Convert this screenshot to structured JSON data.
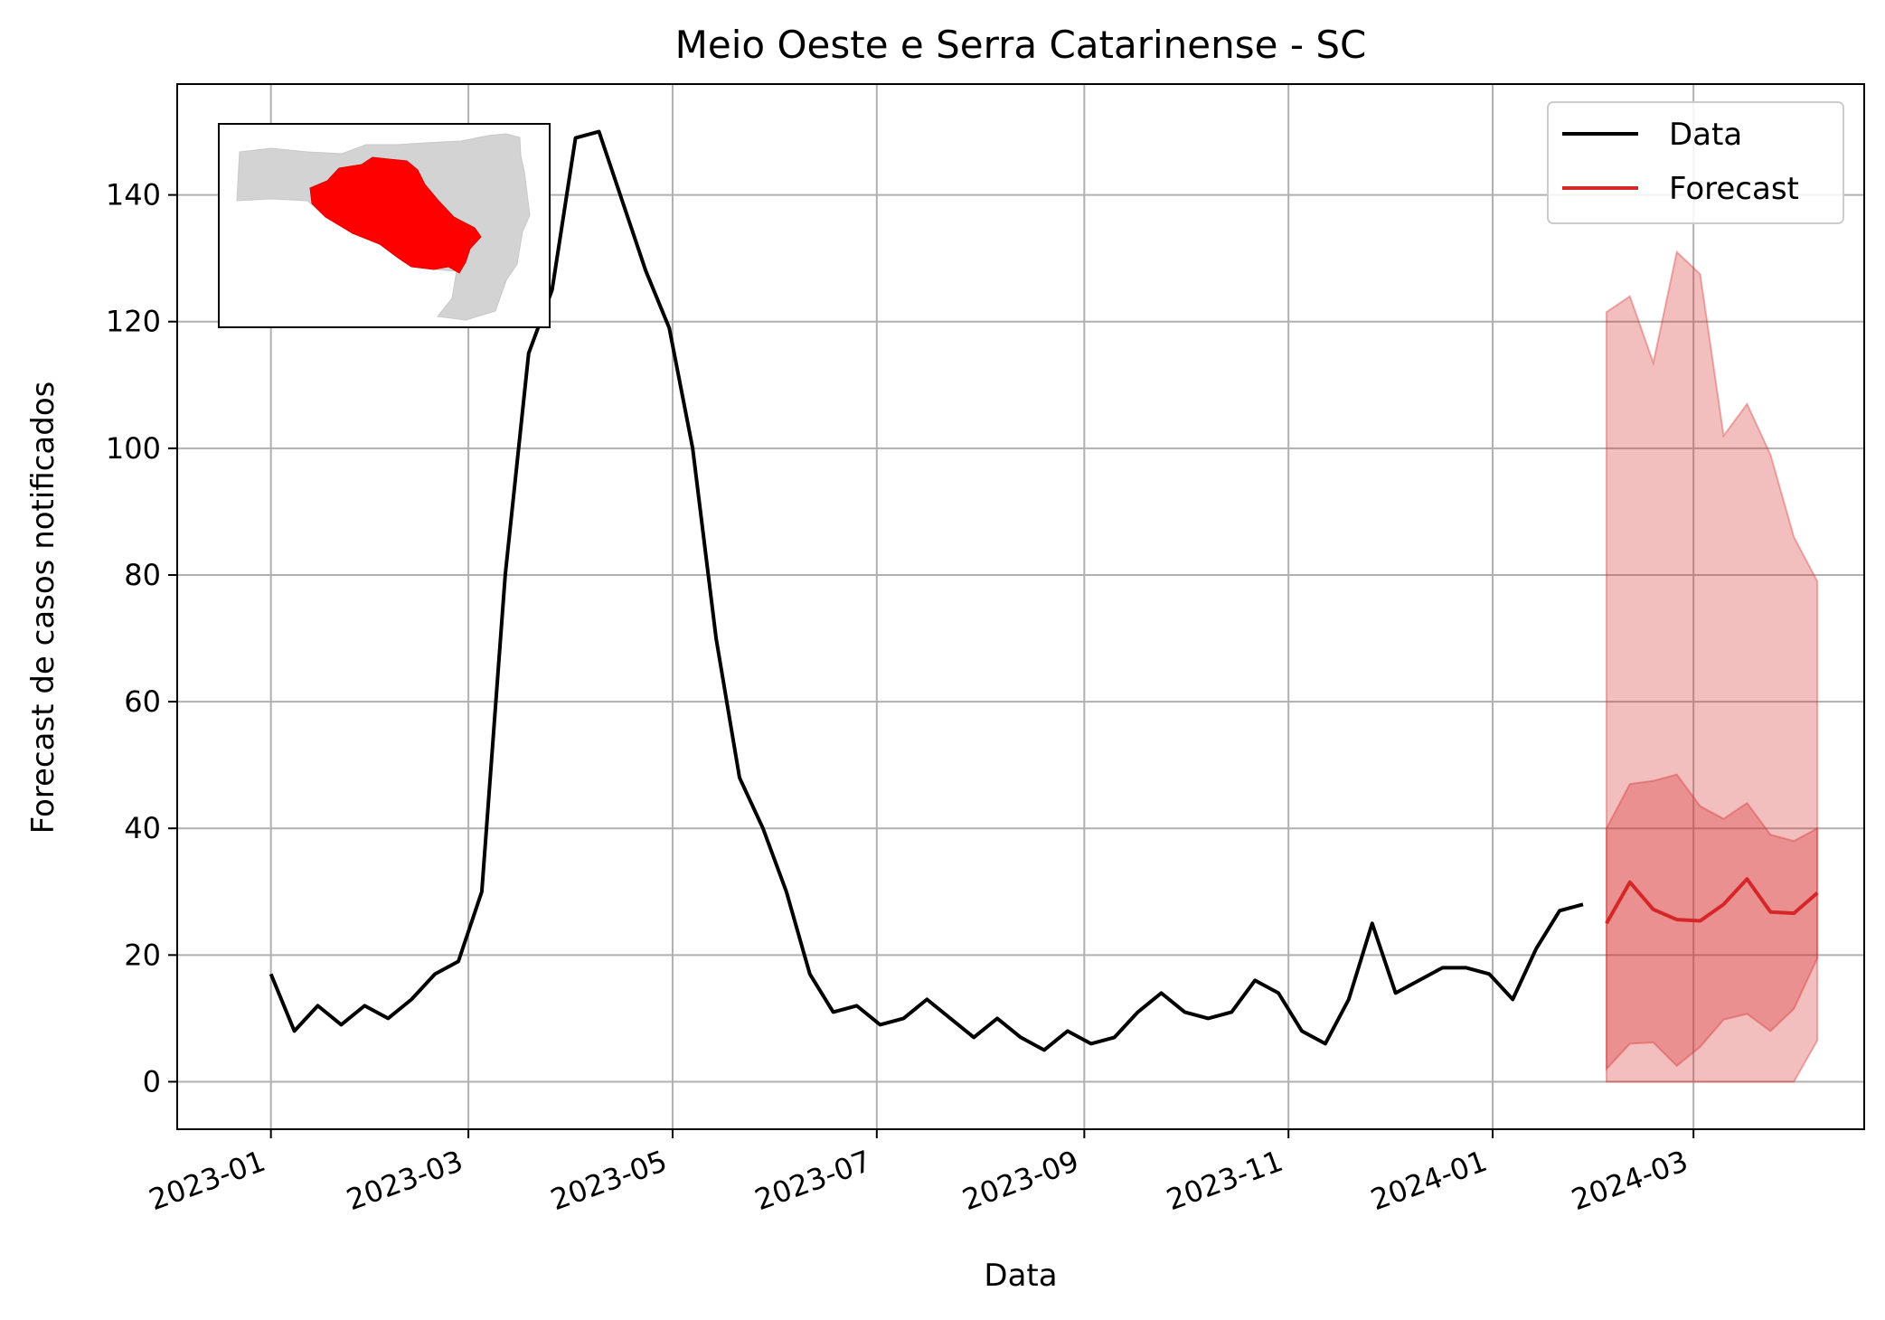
{
  "chart_data": {
    "type": "line",
    "title": "Meio Oeste e Serra Catarinense - SC",
    "xlabel": "Data",
    "ylabel": "Forecast de casos notificados",
    "grid": true,
    "legend_position": "top-right",
    "xlim": [
      "2022-12-04",
      "2024-04-21"
    ],
    "ylim": [
      -7.5,
      157.5
    ],
    "x_ticks": [
      "2023-01-01",
      "2023-03-01",
      "2023-05-01",
      "2023-07-01",
      "2023-09-01",
      "2023-11-01",
      "2024-01-01",
      "2024-03-01"
    ],
    "x_tick_labels": [
      "2023-01",
      "2023-03",
      "2023-05",
      "2023-07",
      "2023-09",
      "2023-11",
      "2024-01",
      "2024-03"
    ],
    "y_ticks": [
      0,
      20,
      40,
      60,
      80,
      100,
      120,
      140
    ],
    "colors": {
      "data": "#000000",
      "forecast": "#d62728",
      "interval": "#d62728",
      "map_highlight": "#ff0000",
      "map_base": "#d3d3d3"
    },
    "inset": "map-of-santa-catarina-with-region-highlighted",
    "series": [
      {
        "name": "Data",
        "x": [
          "2023-01-01",
          "2023-01-08",
          "2023-01-15",
          "2023-01-22",
          "2023-01-29",
          "2023-02-05",
          "2023-02-12",
          "2023-02-19",
          "2023-02-26",
          "2023-03-05",
          "2023-03-12",
          "2023-03-19",
          "2023-03-26",
          "2023-04-02",
          "2023-04-09",
          "2023-04-16",
          "2023-04-23",
          "2023-04-30",
          "2023-05-07",
          "2023-05-14",
          "2023-05-21",
          "2023-05-28",
          "2023-06-04",
          "2023-06-11",
          "2023-06-18",
          "2023-06-25",
          "2023-07-02",
          "2023-07-09",
          "2023-07-16",
          "2023-07-23",
          "2023-07-30",
          "2023-08-06",
          "2023-08-13",
          "2023-08-20",
          "2023-08-27",
          "2023-09-03",
          "2023-09-10",
          "2023-09-17",
          "2023-09-24",
          "2023-10-01",
          "2023-10-08",
          "2023-10-15",
          "2023-10-22",
          "2023-10-29",
          "2023-11-05",
          "2023-11-12",
          "2023-11-19",
          "2023-11-26",
          "2023-12-03",
          "2023-12-10",
          "2023-12-17",
          "2023-12-24",
          "2023-12-31",
          "2024-01-07",
          "2024-01-14",
          "2024-01-21",
          "2024-01-28"
        ],
        "values": [
          17,
          8,
          12,
          9,
          12,
          10,
          13,
          17,
          19,
          30,
          80,
          115,
          125,
          149,
          150,
          139,
          128,
          119,
          100,
          70,
          48,
          40,
          30,
          17,
          11,
          12,
          9,
          10,
          13,
          10,
          7,
          10,
          7,
          5,
          8,
          6,
          7,
          11,
          14,
          11,
          10,
          11,
          16,
          14,
          8,
          6,
          13,
          25,
          14,
          16,
          18,
          18,
          17,
          13,
          21,
          27,
          28
        ]
      },
      {
        "name": "Forecast",
        "x": [
          "2024-02-04",
          "2024-02-11",
          "2024-02-18",
          "2024-02-25",
          "2024-03-03",
          "2024-03-10",
          "2024-03-17",
          "2024-03-24",
          "2024-03-31",
          "2024-04-07"
        ],
        "values": [
          25,
          31.5,
          27.2,
          25.6,
          25.4,
          28,
          32,
          26.8,
          26.6,
          29.8
        ],
        "lower_50": [
          2,
          6,
          6.2,
          2.5,
          5.5,
          9.8,
          10.7,
          8,
          11.5,
          19.5
        ],
        "upper_50": [
          40,
          47,
          47.5,
          48.5,
          43.5,
          41.5,
          44,
          39,
          38,
          40
        ],
        "lower_90": [
          0,
          0,
          0,
          0,
          0,
          0,
          0,
          0,
          0,
          6.5
        ],
        "upper_90": [
          121.5,
          124,
          113.5,
          131,
          127.5,
          102,
          107,
          99,
          86,
          79
        ]
      }
    ]
  }
}
